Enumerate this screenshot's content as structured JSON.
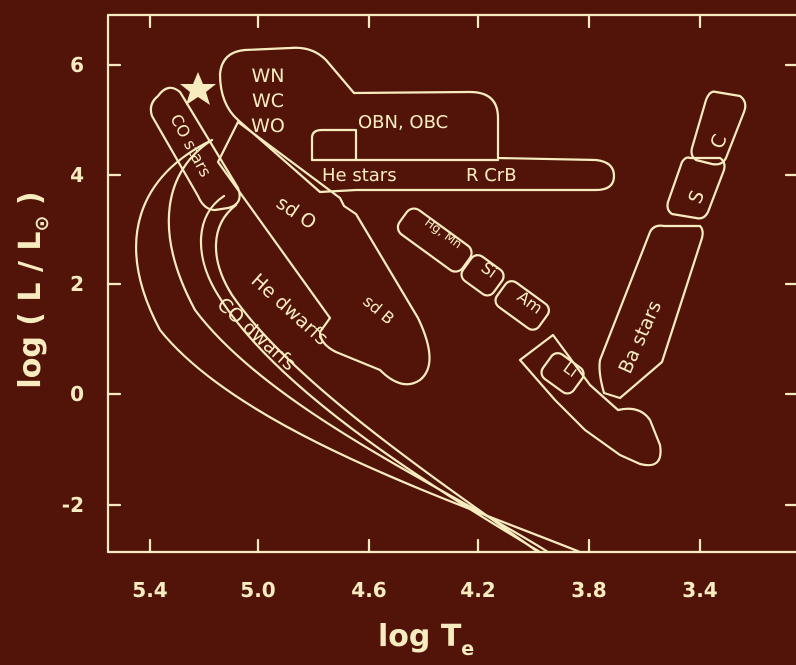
{
  "colors": {
    "background": "#521408",
    "ink": "#f6ecc0"
  },
  "axes": {
    "x": {
      "title_main": "log T",
      "title_sub": "e",
      "reversed": true,
      "ticks": [
        "5.4",
        "5.0",
        "4.6",
        "4.2",
        "3.8",
        "3.4"
      ]
    },
    "y": {
      "title_main": "log ( L / L",
      "title_sub": "⊙",
      "title_end": " )",
      "ticks": [
        "6",
        "4",
        "2",
        "0",
        "-2"
      ]
    }
  },
  "marker": {
    "icon": "star-icon"
  },
  "labels": {
    "wn": "WN",
    "wc": "WC",
    "wo": "WO",
    "obn": "OBN, OBC",
    "he_stars": "He stars",
    "rcrb": "R CrB",
    "co_stars": "CO stars",
    "sdo": "sd  O",
    "sdb": "sd B",
    "hgmn": "Hg, Mn",
    "si": "Si",
    "am": "Am",
    "li": "Li",
    "ba_stars": "Ba  stars",
    "s": "S",
    "c": "C",
    "he_dwarfs": "He dwarfs",
    "co_dwarfs": "CO dwarfs"
  }
}
